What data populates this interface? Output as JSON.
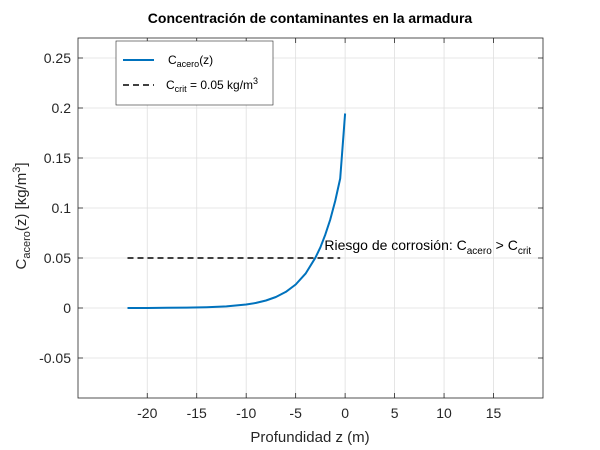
{
  "chart_data": {
    "type": "line",
    "title": "Concentración de contaminantes en la armadura",
    "xlabel": {
      "main": "Profundidad z (m)"
    },
    "ylabel": {
      "pre": "C",
      "sub": "acero",
      "post": "(z) [kg/m",
      "sup": "3",
      "end": "]"
    },
    "xlim": [
      -27,
      20
    ],
    "ylim": [
      -0.09,
      0.27
    ],
    "xticks": [
      -20,
      -15,
      -10,
      -5,
      0,
      5,
      10,
      15
    ],
    "xtick_labels": [
      "-20",
      "-15",
      "-10",
      "-5",
      "0",
      "5",
      "10",
      "15"
    ],
    "yticks": [
      -0.05,
      0,
      0.05,
      0.1,
      0.15,
      0.2,
      0.25
    ],
    "ytick_labels": [
      "-0.05",
      "0",
      "0.05",
      "0.1",
      "0.15",
      "0.2",
      "0.25"
    ],
    "grid": true,
    "legend_position": "top-left",
    "series": [
      {
        "legend": {
          "pre": "C",
          "sub": "acero",
          "post": "(z)"
        },
        "color": "#0072BD",
        "style": "solid",
        "x": [
          -22,
          -20,
          -18,
          -16,
          -14,
          -12,
          -10,
          -9,
          -8,
          -7,
          -6,
          -5,
          -4,
          -3,
          -2.5,
          -2,
          -1.5,
          -1,
          -0.5,
          0
        ],
        "y": [
          0.0,
          0.0,
          0.0002,
          0.0004,
          0.0008,
          0.0016,
          0.0035,
          0.0051,
          0.0075,
          0.011,
          0.0161,
          0.0235,
          0.0344,
          0.0503,
          0.0607,
          0.0734,
          0.0886,
          0.107,
          0.1295,
          0.1945
        ]
      },
      {
        "legend": {
          "pre": "C",
          "sub": "crit",
          "post": " = 0.05 kg/m",
          "sup": "3"
        },
        "color": "#000000",
        "style": "dashed",
        "x": [
          -22,
          -0.5
        ],
        "y": [
          0.05,
          0.05
        ]
      }
    ],
    "annotation": {
      "pre": "Riesgo de corrosión: C",
      "sub1": "acero",
      "mid": " > C",
      "sub2": "crit",
      "x": -2.1,
      "y": 0.058
    }
  }
}
